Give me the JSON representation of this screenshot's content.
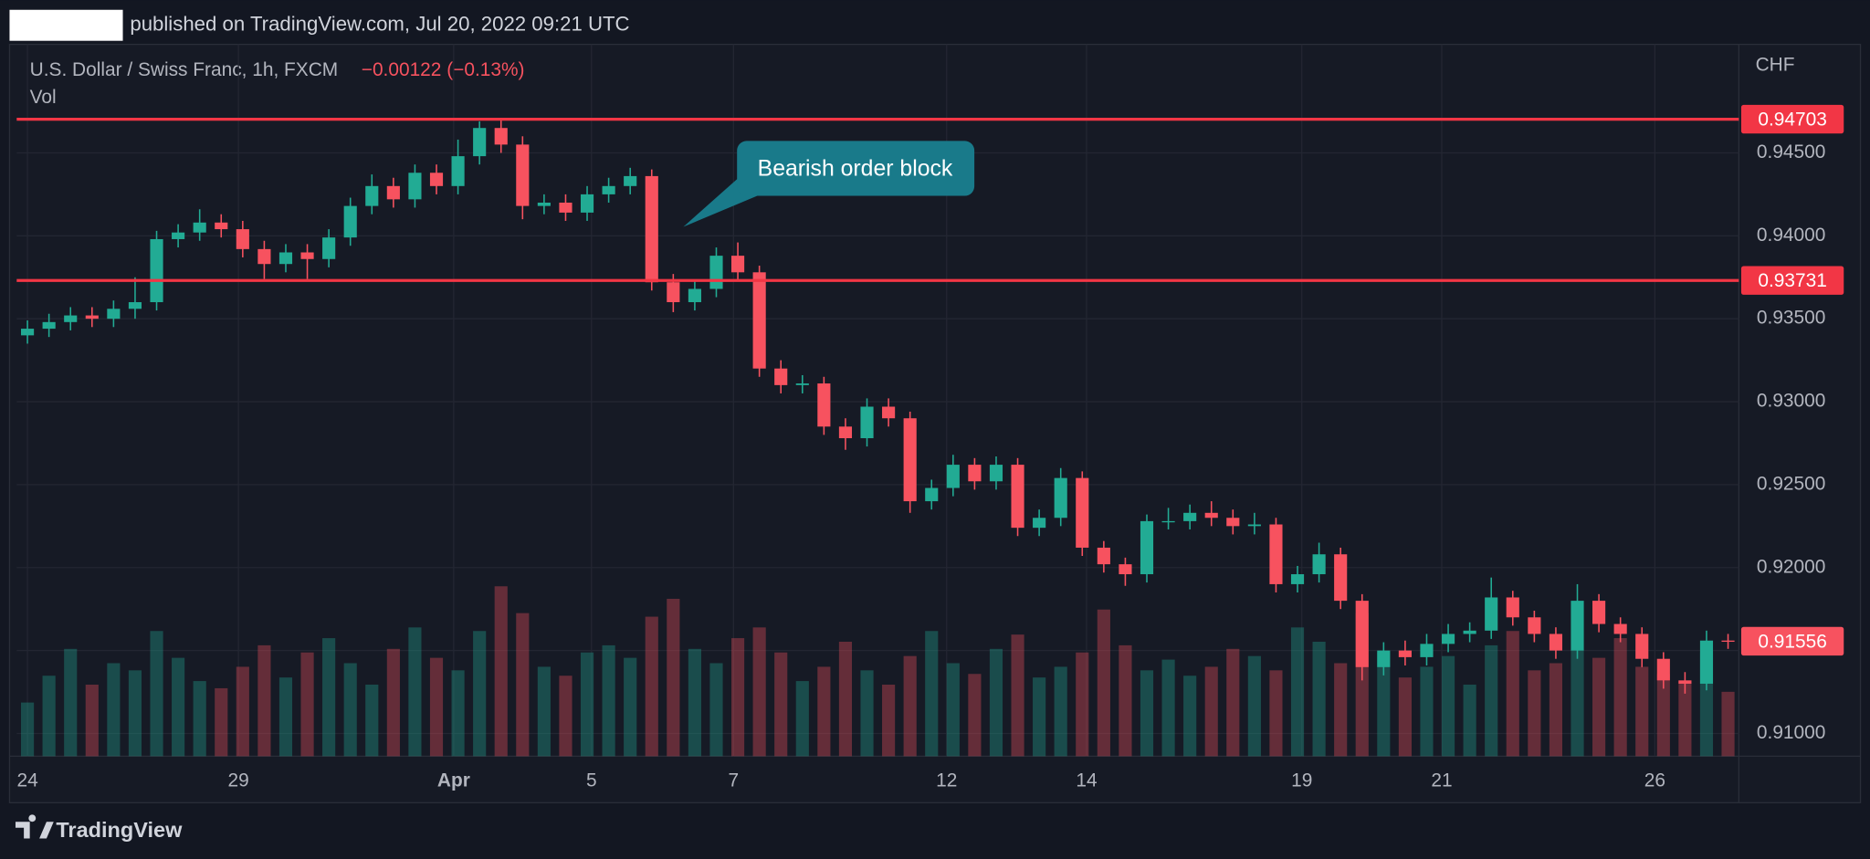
{
  "published": "published on TradingView.com, Jul 20, 2022 09:21 UTC",
  "footer": "TradingView",
  "chart_data": {
    "type": "candlestick",
    "title": "U.S. Dollar / Swiss Franc, 1h, FXCM",
    "change": "−0.00122 (−0.13%)",
    "volume_label": "Vol",
    "currency": "CHF",
    "annotation": "Bearish order block",
    "up_color": "#22ab94",
    "down_color": "#f7525f",
    "background": "#161a25",
    "grid": true,
    "xlim": [
      0,
      80
    ],
    "xticks": [
      {
        "value": 0.5,
        "label": "24"
      },
      {
        "value": 10.3,
        "label": "29"
      },
      {
        "value": 20.3,
        "label": "Apr"
      },
      {
        "value": 26.7,
        "label": "5"
      },
      {
        "value": 33.3,
        "label": "7"
      },
      {
        "value": 43.2,
        "label": "12"
      },
      {
        "value": 49.7,
        "label": "14"
      },
      {
        "value": 59.7,
        "label": "19"
      },
      {
        "value": 66.2,
        "label": "21"
      },
      {
        "value": 76.1,
        "label": "26"
      }
    ],
    "ylim": [
      0.90863,
      0.95154
    ],
    "yticks": [
      {
        "value": 0.945,
        "label": "0.94500"
      },
      {
        "value": 0.94,
        "label": "0.94000"
      },
      {
        "value": 0.935,
        "label": "0.93500"
      },
      {
        "value": 0.93,
        "label": "0.93000"
      },
      {
        "value": 0.925,
        "label": "0.92500"
      },
      {
        "value": 0.92,
        "label": "0.92000"
      },
      {
        "value": 0.915,
        "label": "0.91500"
      },
      {
        "value": 0.91,
        "label": "0.91000"
      }
    ],
    "hlines": [
      {
        "value": 0.94703,
        "color": "#f23645"
      },
      {
        "value": 0.93731,
        "color": "#f23645"
      }
    ],
    "open": [
      0.934,
      0.9344,
      0.9348,
      0.9352,
      0.935,
      0.9356,
      0.936,
      0.9398,
      0.9402,
      0.9408,
      0.9404,
      0.9392,
      0.9383,
      0.939,
      0.9386,
      0.9399,
      0.9418,
      0.943,
      0.9422,
      0.9438,
      0.943,
      0.9448,
      0.9465,
      0.9455,
      0.9418,
      0.942,
      0.9414,
      0.9425,
      0.943,
      0.9436,
      0.9372,
      0.936,
      0.9368,
      0.9388,
      0.9378,
      0.932,
      0.931,
      0.9311,
      0.9285,
      0.9278,
      0.9297,
      0.929,
      0.924,
      0.9248,
      0.9262,
      0.9252,
      0.9262,
      0.9224,
      0.923,
      0.9254,
      0.9212,
      0.9202,
      0.9196,
      0.9228,
      0.9228,
      0.9233,
      0.923,
      0.9225,
      0.9226,
      0.919,
      0.9196,
      0.9208,
      0.918,
      0.914,
      0.915,
      0.9146,
      0.9154,
      0.916,
      0.9162,
      0.9182,
      0.917,
      0.916,
      0.915,
      0.918,
      0.9166,
      0.916,
      0.9145,
      0.9132,
      0.913,
      0.9156
    ],
    "high": [
      0.9349,
      0.9353,
      0.9357,
      0.9357,
      0.9361,
      0.9375,
      0.9403,
      0.9407,
      0.9416,
      0.9413,
      0.9409,
      0.9397,
      0.9395,
      0.9395,
      0.9404,
      0.9423,
      0.9437,
      0.9435,
      0.9443,
      0.9443,
      0.9458,
      0.9469,
      0.94703,
      0.946,
      0.9425,
      0.9425,
      0.943,
      0.9435,
      0.9441,
      0.944,
      0.9377,
      0.9373,
      0.9393,
      0.9396,
      0.9382,
      0.9325,
      0.9316,
      0.9315,
      0.929,
      0.9302,
      0.9302,
      0.9294,
      0.9253,
      0.9268,
      0.9266,
      0.9267,
      0.9266,
      0.9235,
      0.926,
      0.9258,
      0.9216,
      0.9206,
      0.9232,
      0.9236,
      0.9238,
      0.924,
      0.9235,
      0.9233,
      0.923,
      0.9201,
      0.9215,
      0.9212,
      0.9184,
      0.9155,
      0.9156,
      0.916,
      0.9166,
      0.9167,
      0.9194,
      0.9186,
      0.9174,
      0.9164,
      0.919,
      0.9184,
      0.917,
      0.9164,
      0.9149,
      0.9137,
      0.9162,
      0.916
    ],
    "low": [
      0.9335,
      0.9339,
      0.9343,
      0.9345,
      0.9345,
      0.935,
      0.9355,
      0.9393,
      0.9397,
      0.9399,
      0.9387,
      0.9374,
      0.9378,
      0.9374,
      0.9381,
      0.9394,
      0.9413,
      0.9417,
      0.9417,
      0.9425,
      0.9425,
      0.9443,
      0.945,
      0.941,
      0.9413,
      0.9409,
      0.9409,
      0.942,
      0.9425,
      0.9367,
      0.9354,
      0.9355,
      0.9363,
      0.9373,
      0.9315,
      0.9305,
      0.9305,
      0.928,
      0.9271,
      0.9273,
      0.9285,
      0.9233,
      0.9235,
      0.9243,
      0.9247,
      0.9247,
      0.9219,
      0.9219,
      0.9225,
      0.9207,
      0.9197,
      0.9189,
      0.9191,
      0.9223,
      0.9223,
      0.9225,
      0.922,
      0.922,
      0.9185,
      0.9185,
      0.9191,
      0.9175,
      0.9132,
      0.9135,
      0.9141,
      0.9141,
      0.9149,
      0.9155,
      0.9157,
      0.9165,
      0.9155,
      0.9145,
      0.9145,
      0.9161,
      0.9155,
      0.914,
      0.9127,
      0.9124,
      0.9126,
      0.9151
    ],
    "close": [
      0.9344,
      0.9348,
      0.9352,
      0.935,
      0.9356,
      0.936,
      0.9398,
      0.9402,
      0.9408,
      0.9404,
      0.9392,
      0.9383,
      0.939,
      0.9386,
      0.9399,
      0.9418,
      0.943,
      0.9422,
      0.9438,
      0.943,
      0.9448,
      0.9465,
      0.9455,
      0.9418,
      0.942,
      0.9414,
      0.9425,
      0.943,
      0.9436,
      0.9372,
      0.936,
      0.9368,
      0.9388,
      0.9378,
      0.932,
      0.931,
      0.9311,
      0.9285,
      0.9278,
      0.9297,
      0.929,
      0.924,
      0.9248,
      0.9262,
      0.9252,
      0.9262,
      0.9224,
      0.923,
      0.9254,
      0.9212,
      0.9202,
      0.9196,
      0.9228,
      0.9228,
      0.9233,
      0.923,
      0.9225,
      0.9226,
      0.919,
      0.9196,
      0.9208,
      0.918,
      0.914,
      0.915,
      0.9146,
      0.9154,
      0.916,
      0.9162,
      0.9182,
      0.917,
      0.916,
      0.915,
      0.918,
      0.9166,
      0.916,
      0.9145,
      0.9132,
      0.913,
      0.9156,
      0.91556
    ],
    "vlim": [
      0,
      100
    ],
    "volume": [
      30,
      45,
      60,
      40,
      52,
      48,
      70,
      55,
      42,
      38,
      50,
      62,
      44,
      58,
      66,
      52,
      40,
      60,
      72,
      55,
      48,
      70,
      95,
      80,
      50,
      45,
      58,
      62,
      55,
      78,
      88,
      60,
      52,
      66,
      72,
      58,
      42,
      50,
      64,
      48,
      40,
      56,
      70,
      52,
      46,
      60,
      68,
      44,
      50,
      58,
      82,
      62,
      48,
      54,
      45,
      50,
      60,
      56,
      48,
      72,
      64,
      52,
      80,
      58,
      44,
      50,
      56,
      40,
      62,
      70,
      48,
      52,
      60,
      55,
      66,
      50,
      46,
      42,
      58,
      36
    ]
  }
}
